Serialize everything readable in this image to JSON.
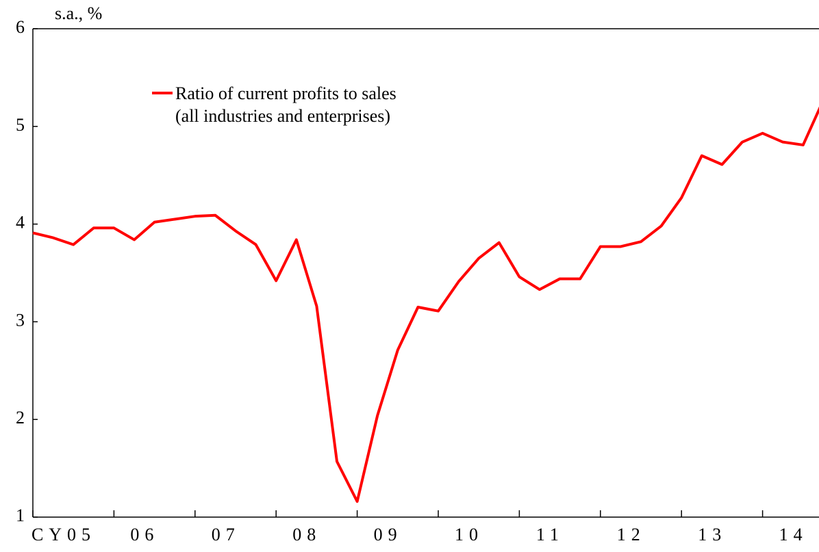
{
  "chart_data": {
    "type": "line",
    "y_axis_label": "s.a., %",
    "categories": [
      "CY05",
      null,
      null,
      null,
      "06",
      null,
      null,
      null,
      "07",
      null,
      null,
      null,
      "08",
      null,
      null,
      null,
      "09",
      null,
      null,
      null,
      "10",
      null,
      null,
      null,
      "11",
      null,
      null,
      null,
      "12",
      null,
      null,
      null,
      "13",
      null,
      null,
      null,
      "14",
      null,
      null,
      null
    ],
    "series": [
      {
        "name": "Ratio of current profits to sales\n(all industries and enterprises)",
        "color": "#ff0000",
        "values": [
          3.91,
          3.86,
          3.79,
          3.96,
          3.96,
          3.84,
          4.02,
          4.05,
          4.08,
          4.09,
          3.93,
          3.79,
          3.42,
          3.84,
          3.16,
          1.57,
          1.16,
          2.04,
          2.71,
          3.15,
          3.11,
          3.41,
          3.65,
          3.81,
          3.46,
          3.33,
          3.44,
          3.44,
          3.77,
          3.77,
          3.82,
          3.98,
          4.27,
          4.7,
          4.61,
          4.84,
          4.93,
          4.84,
          4.81,
          5.27
        ]
      }
    ],
    "ylim": [
      1,
      6
    ],
    "yticks": [
      1,
      2,
      3,
      4,
      5,
      6
    ],
    "grid": false
  }
}
